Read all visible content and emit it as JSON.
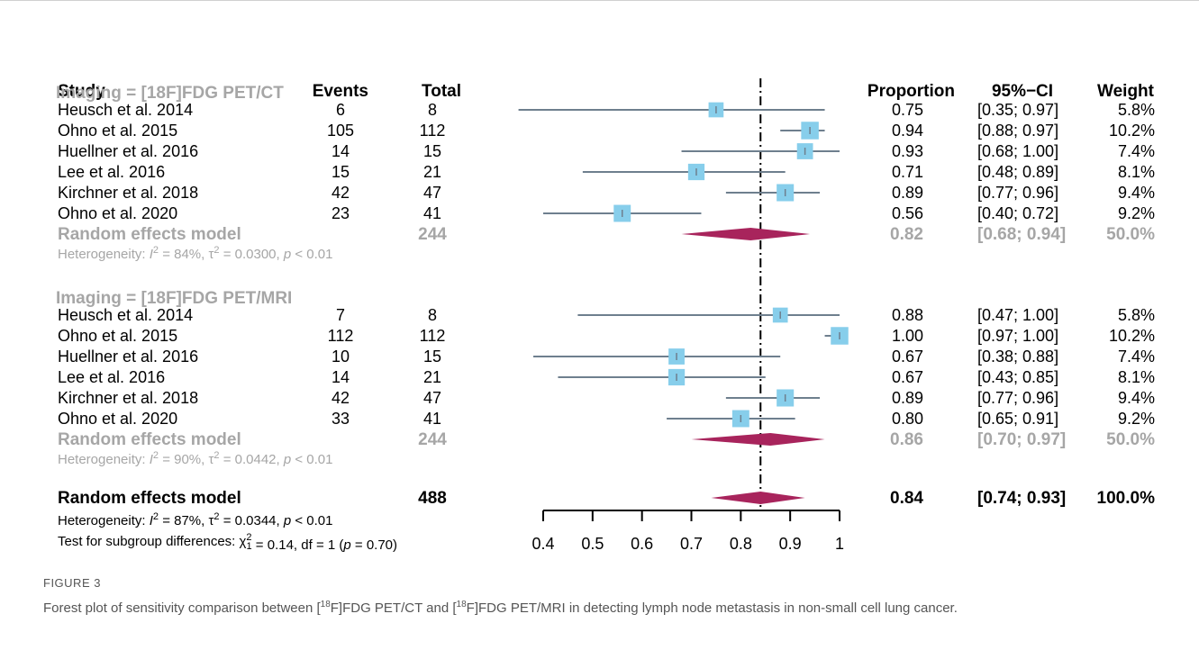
{
  "columns": {
    "study": "Study",
    "events": "Events",
    "total": "Total",
    "proportion": "Proportion",
    "ci": "95%−CI",
    "weight": "Weight"
  },
  "groups": [
    {
      "label": "Imaging = [18F]FDG PET/CT",
      "studies": [
        {
          "study": "Heusch et al. 2014",
          "events": "6",
          "total": "8",
          "proportion": "0.75",
          "ci": "[0.35; 0.97]",
          "weight": "5.8%"
        },
        {
          "study": "Ohno et al. 2015",
          "events": "105",
          "total": "112",
          "proportion": "0.94",
          "ci": "[0.88; 0.97]",
          "weight": "10.2%"
        },
        {
          "study": "Huellner et al. 2016",
          "events": "14",
          "total": "15",
          "proportion": "0.93",
          "ci": "[0.68; 1.00]",
          "weight": "7.4%"
        },
        {
          "study": "Lee et al. 2016",
          "events": "15",
          "total": "21",
          "proportion": "0.71",
          "ci": "[0.48; 0.89]",
          "weight": "8.1%"
        },
        {
          "study": "Kirchner et al. 2018",
          "events": "42",
          "total": "47",
          "proportion": "0.89",
          "ci": "[0.77; 0.96]",
          "weight": "9.4%"
        },
        {
          "study": "Ohno et al. 2020",
          "events": "23",
          "total": "41",
          "proportion": "0.56",
          "ci": "[0.40; 0.72]",
          "weight": "9.2%"
        }
      ],
      "pooled": {
        "label": "Random effects model",
        "total": "244",
        "proportion": "0.82",
        "ci": "[0.68; 0.94]",
        "weight": "50.0%"
      },
      "heterogeneity": {
        "text1": "Heterogeneity: ",
        "i2": "I",
        "text2": " = 84%, ",
        "tau": "τ",
        "text3": " = 0.0300, ",
        "p": "p",
        "text4": " < 0.01"
      }
    },
    {
      "label": "Imaging = [18F]FDG PET/MRI",
      "studies": [
        {
          "study": "Heusch et al. 2014",
          "events": "7",
          "total": "8",
          "proportion": "0.88",
          "ci": "[0.47; 1.00]",
          "weight": "5.8%"
        },
        {
          "study": "Ohno et al. 2015",
          "events": "112",
          "total": "112",
          "proportion": "1.00",
          "ci": "[0.97; 1.00]",
          "weight": "10.2%"
        },
        {
          "study": "Huellner et al. 2016",
          "events": "10",
          "total": "15",
          "proportion": "0.67",
          "ci": "[0.38; 0.88]",
          "weight": "7.4%"
        },
        {
          "study": "Lee et al. 2016",
          "events": "14",
          "total": "21",
          "proportion": "0.67",
          "ci": "[0.43; 0.85]",
          "weight": "8.1%"
        },
        {
          "study": "Kirchner et al. 2018",
          "events": "42",
          "total": "47",
          "proportion": "0.89",
          "ci": "[0.77; 0.96]",
          "weight": "9.4%"
        },
        {
          "study": "Ohno et al. 2020",
          "events": "33",
          "total": "41",
          "proportion": "0.80",
          "ci": "[0.65; 0.91]",
          "weight": "9.2%"
        }
      ],
      "pooled": {
        "label": "Random effects model",
        "total": "244",
        "proportion": "0.86",
        "ci": "[0.70; 0.97]",
        "weight": "50.0%"
      },
      "heterogeneity": {
        "text1": "Heterogeneity: ",
        "i2": "I",
        "text2": " = 90%, ",
        "tau": "τ",
        "text3": " = 0.0442, ",
        "p": "p",
        "text4": " < 0.01"
      }
    }
  ],
  "overall": {
    "label": "Random effects model",
    "total": "488",
    "proportion": "0.84",
    "ci": "[0.74; 0.93]",
    "weight": "100.0%",
    "heterogeneity": {
      "text1": "Heterogeneity: ",
      "i2": "I",
      "text2": " = 87%, ",
      "tau": "τ",
      "text3": " = 0.0344, ",
      "p": "p",
      "text4": " < 0.01"
    },
    "subgroup_test": {
      "text1": "Test for subgroup differences: ",
      "chi": "χ",
      "text2": " = 0.14, df = 1 (",
      "p": "p",
      "text3": " = 0.70)"
    }
  },
  "chart_data": {
    "type": "forest",
    "axis": {
      "ticks": [
        0.4,
        0.5,
        0.6,
        0.7,
        0.8,
        0.9,
        1.0
      ],
      "tick_labels": [
        "0.4",
        "0.5",
        "0.6",
        "0.7",
        "0.8",
        "0.9",
        "1"
      ],
      "range": [
        0.4,
        1.0
      ],
      "reference_line": 0.84
    },
    "groups": [
      {
        "studies": [
          {
            "est": 0.75,
            "lo": 0.35,
            "hi": 0.97,
            "w": 5.8
          },
          {
            "est": 0.94,
            "lo": 0.88,
            "hi": 0.97,
            "w": 10.2
          },
          {
            "est": 0.93,
            "lo": 0.68,
            "hi": 1.0,
            "w": 7.4
          },
          {
            "est": 0.71,
            "lo": 0.48,
            "hi": 0.89,
            "w": 8.1
          },
          {
            "est": 0.89,
            "lo": 0.77,
            "hi": 0.96,
            "w": 9.4
          },
          {
            "est": 0.56,
            "lo": 0.4,
            "hi": 0.72,
            "w": 9.2
          }
        ],
        "pooled": {
          "est": 0.82,
          "lo": 0.68,
          "hi": 0.94
        }
      },
      {
        "studies": [
          {
            "est": 0.88,
            "lo": 0.47,
            "hi": 1.0,
            "w": 5.8
          },
          {
            "est": 1.0,
            "lo": 0.97,
            "hi": 1.0,
            "w": 10.2
          },
          {
            "est": 0.67,
            "lo": 0.38,
            "hi": 0.88,
            "w": 7.4
          },
          {
            "est": 0.67,
            "lo": 0.43,
            "hi": 0.85,
            "w": 8.1
          },
          {
            "est": 0.89,
            "lo": 0.77,
            "hi": 0.96,
            "w": 9.4
          },
          {
            "est": 0.8,
            "lo": 0.65,
            "hi": 0.91,
            "w": 9.2
          }
        ],
        "pooled": {
          "est": 0.86,
          "lo": 0.7,
          "hi": 0.97
        }
      }
    ],
    "overall": {
      "est": 0.84,
      "lo": 0.74,
      "hi": 0.93
    },
    "colors": {
      "box": "#87ceeb",
      "line": "#6e7f8e",
      "diamond": "#a8245c",
      "ref": "#000000",
      "muted": "#a6a6a6"
    }
  },
  "caption": {
    "label": "FIGURE 3",
    "text_parts": [
      "Forest plot of sensitivity comparison between [",
      "18",
      "F]FDG PET/CT and [",
      "18",
      "F]FDG PET/MRI in detecting lymph node metastasis in non-small cell lung cancer."
    ]
  }
}
